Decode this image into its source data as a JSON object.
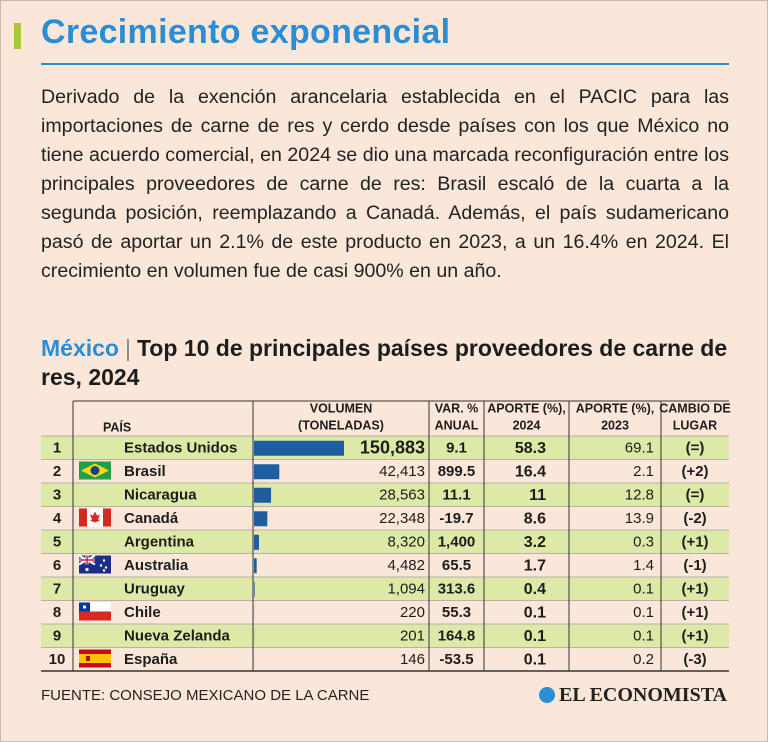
{
  "header": {
    "title": "Crecimiento exponencial"
  },
  "intro": "Derivado de la exención arancelaria establecida en el PACIC para las importaciones de carne de res y cerdo desde países con los que México no tiene acuerdo comercial, en 2024 se dio una marcada reconfiguración entre los principales proveedores de carne de res: Brasil escaló de la cuarta a la segunda posición, reemplazando a Canadá. Además, el país sudamericano pasó de aportar un 2.1% de este producto en 2023, a un 16.4% en 2024. El crecimiento en volumen fue de casi 900% en un año.",
  "subtitle": {
    "country": "México",
    "separator": "|",
    "text": "Top 10 de principales países proveedores de carne de res, 2024"
  },
  "table": {
    "headers": [
      [
        "PAÍS"
      ],
      [
        "VOLUMEN",
        "(TONELADAS)"
      ],
      [
        "VAR. %",
        "ANUAL"
      ],
      [
        "APORTE (%),",
        "2024"
      ],
      [
        "APORTE (%),",
        "2023"
      ],
      [
        "CAMBIO DE",
        "LUGAR"
      ]
    ],
    "rows": [
      {
        "rank": "1",
        "country": "Estados Unidos",
        "volume": 150883,
        "volume_label": "150,883",
        "var": "9.1",
        "share2024": "58.3",
        "share2023": "69.1",
        "change": "(=)"
      },
      {
        "rank": "2",
        "country": "Brasil",
        "volume": 42413,
        "volume_label": "42,413",
        "var": "899.5",
        "share2024": "16.4",
        "share2023": "2.1",
        "change": "(+2)"
      },
      {
        "rank": "3",
        "country": "Nicaragua",
        "volume": 28563,
        "volume_label": "28,563",
        "var": "11.1",
        "share2024": "11",
        "share2023": "12.8",
        "change": "(=)"
      },
      {
        "rank": "4",
        "country": "Canadá",
        "volume": 22348,
        "volume_label": "22,348",
        "var": "-19.7",
        "share2024": "8.6",
        "share2023": "13.9",
        "change": "(-2)"
      },
      {
        "rank": "5",
        "country": "Argentina",
        "volume": 8320,
        "volume_label": "8,320",
        "var": "1,400",
        "share2024": "3.2",
        "share2023": "0.3",
        "change": "(+1)"
      },
      {
        "rank": "6",
        "country": "Australia",
        "volume": 4482,
        "volume_label": "4,482",
        "var": "65.5",
        "share2024": "1.7",
        "share2023": "1.4",
        "change": "(-1)"
      },
      {
        "rank": "7",
        "country": "Uruguay",
        "volume": 1094,
        "volume_label": "1,094",
        "var": "313.6",
        "share2024": "0.4",
        "share2023": "0.1",
        "change": "(+1)"
      },
      {
        "rank": "8",
        "country": "Chile",
        "volume": 220,
        "volume_label": "220",
        "var": "55.3",
        "share2024": "0.1",
        "share2023": "0.1",
        "change": "(+1)"
      },
      {
        "rank": "9",
        "country": "Nueva Zelanda",
        "volume": 201,
        "volume_label": "201",
        "var": "164.8",
        "share2024": "0.1",
        "share2023": "0.1",
        "change": "(+1)"
      },
      {
        "rank": "10",
        "country": "España",
        "volume": 146,
        "volume_label": "146",
        "var": "-53.5",
        "share2024": "0.1",
        "share2023": "0.2",
        "change": "(-3)"
      }
    ]
  },
  "footer": {
    "source": "FUENTE: CONSEJO MEXICANO DE LA CARNE",
    "brand": "EL ECONOMISTA"
  }
}
